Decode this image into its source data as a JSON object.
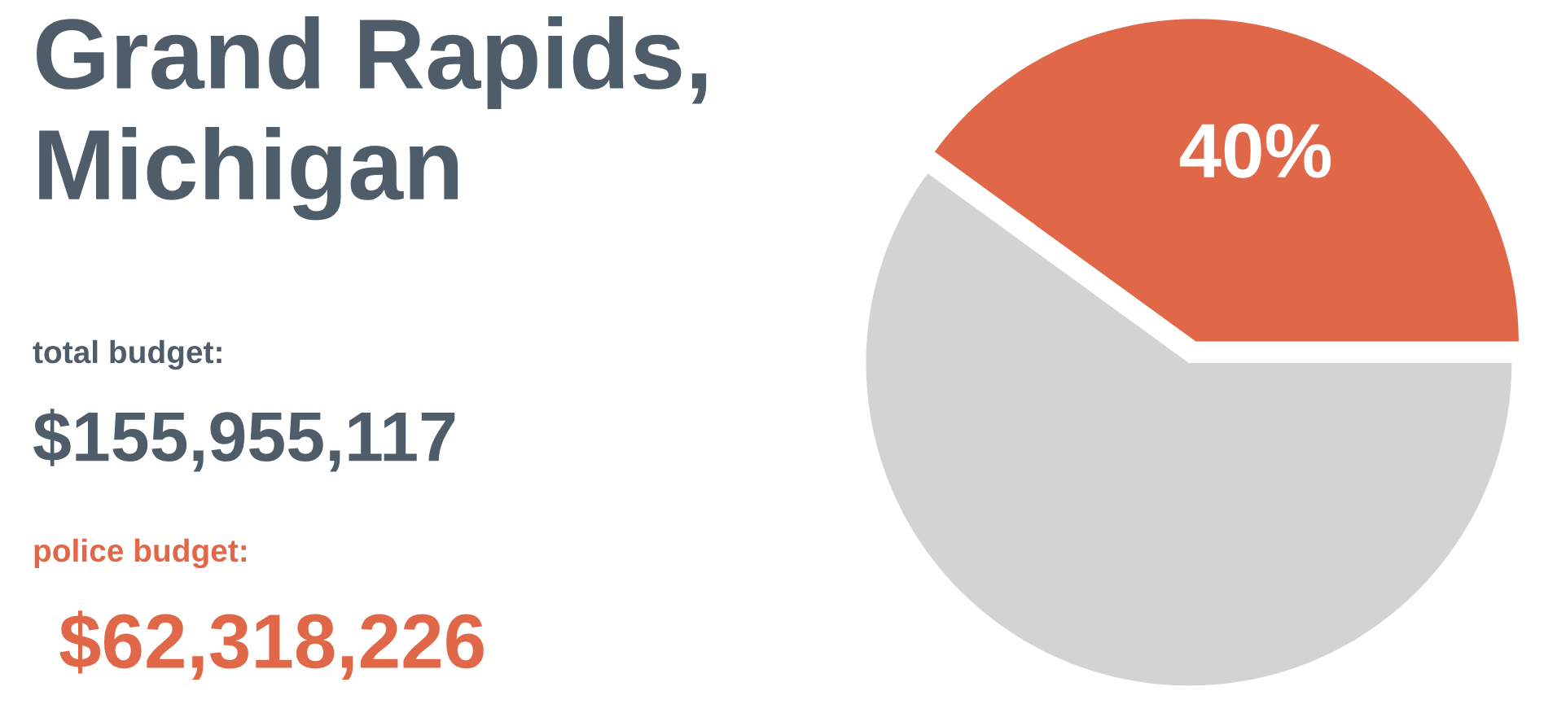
{
  "chart_data": {
    "type": "pie",
    "title": "Grand Rapids,\nMichigan",
    "categories": [
      null,
      null
    ],
    "values": [
      40,
      60
    ],
    "colors": [
      "#e06848",
      "#d3d3d3"
    ],
    "value_labels": [
      "40%",
      null
    ],
    "annotations": [
      "total budget:",
      "$155,955,117",
      "police budget:",
      "$62,318,226"
    ],
    "legend": false
  }
}
